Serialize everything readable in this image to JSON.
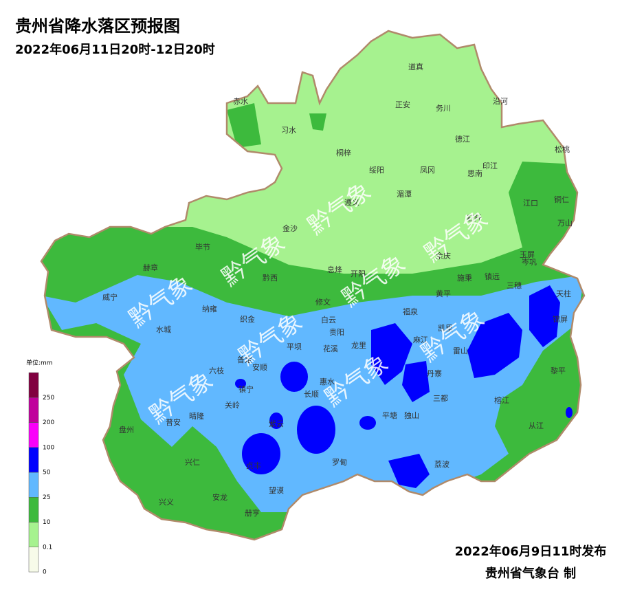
{
  "header": {
    "title": "贵州省降水落区预报图",
    "subtitle": "2022年06月11日20时-12日20时"
  },
  "legend": {
    "unit": "单位:mm",
    "ticks": [
      0,
      0.1,
      10,
      25,
      50,
      100,
      200,
      250
    ],
    "colors": [
      "#f7fbe9",
      "#a6f28f",
      "#3dba3d",
      "#61b8ff",
      "#0000fe",
      "#fa00fa",
      "#c0009c",
      "#810040"
    ]
  },
  "watermark": "黔气象",
  "counties": [
    "赤水",
    "习水",
    "道真",
    "正安",
    "务川",
    "沿河",
    "德江",
    "松桃",
    "桐梓",
    "绥阳",
    "凤冈",
    "印江",
    "思南",
    "湄潭",
    "江口",
    "铜仁",
    "万山",
    "毕节",
    "金沙",
    "遵义",
    "石阡",
    "余庆",
    "玉屏",
    "赫章",
    "岑巩",
    "黔西",
    "息烽",
    "开阳",
    "施秉",
    "镇远",
    "三穗",
    "威宁",
    "黄平",
    "天柱",
    "纳雍",
    "修文",
    "织金",
    "白云",
    "福泉",
    "凯里",
    "锦屏",
    "水城",
    "贵阳",
    "龙里",
    "麻江",
    "雷山",
    "平坝",
    "花溪",
    "普定",
    "安顺",
    "惠水",
    "丹寨",
    "黎平",
    "六枝",
    "镇宁",
    "长顺",
    "三都",
    "关岭",
    "紫云",
    "平塘",
    "独山",
    "榕江",
    "晴隆",
    "从江",
    "盘州",
    "普安",
    "罗甸",
    "荔波",
    "兴仁",
    "贞丰",
    "安龙",
    "兴义",
    "望谟",
    "册亨"
  ],
  "footer": {
    "issued": "2022年06月9日11时发布",
    "producer": "贵州省气象台 制"
  }
}
